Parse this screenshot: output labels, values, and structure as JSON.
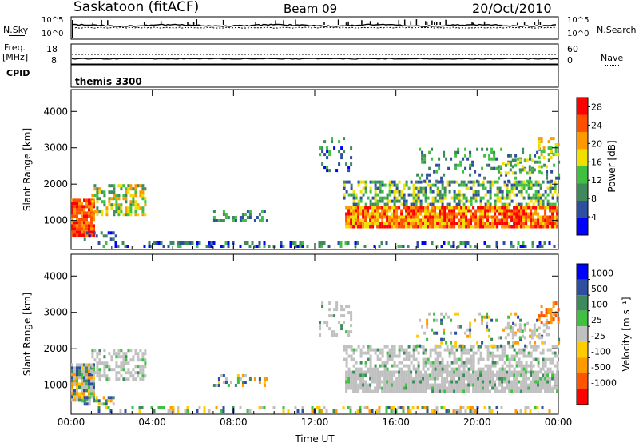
{
  "header": {
    "station": "Saskatoon (fitACF)",
    "beam": "Beam 09",
    "date": "20/Oct/2010"
  },
  "noise_panel": {
    "left_label": "N.Sky",
    "left_ticks": [
      "10^5",
      "10^0"
    ],
    "right_ticks": [
      "10^5",
      "10^0"
    ],
    "right_label": "N.Search"
  },
  "freq_panel": {
    "left_label_1": "Freq.",
    "left_label_2": "[MHz]",
    "left_ticks": [
      "18",
      "8"
    ],
    "right_ticks": [
      "60",
      "0"
    ],
    "right_label": "Nave"
  },
  "cpid": {
    "label": "CPID",
    "value": "themis 3300"
  },
  "colors": {
    "power_scale": [
      "#0000ff",
      "#2e4ea0",
      "#3f8a5c",
      "#40c040",
      "#f0e000",
      "#ff9900",
      "#ff5000",
      "#ff0000"
    ],
    "velocity_scale": [
      "#ff0000",
      "#ff5500",
      "#ff9900",
      "#ffcc00",
      "#c0c0c0",
      "#40c040",
      "#3f8a5c",
      "#2e4ea0",
      "#0000ff"
    ],
    "ground_scatter": "#c0c0c0"
  },
  "chart_data": [
    {
      "type": "heatmap",
      "title": "Power",
      "ylabel": "Slant Range [km]",
      "xlabel": "Time UT",
      "x_ticks": [
        "00:00",
        "04:00",
        "08:00",
        "12:00",
        "16:00",
        "20:00",
        "00:00"
      ],
      "y_ticks": [
        "1000",
        "2000",
        "3000",
        "4000"
      ],
      "ylim": [
        200,
        4600
      ],
      "xlim_hours": [
        0,
        24
      ],
      "colorbar_label": "Power [dB]",
      "colorbar_ticks": [
        "4",
        "8",
        "12",
        "16",
        "20",
        "24",
        "28"
      ],
      "colorbar_range": [
        0,
        30
      ]
    },
    {
      "type": "heatmap",
      "title": "Velocity",
      "ylabel": "Slant Range [km]",
      "xlabel": "Time UT",
      "x_ticks": [
        "00:00",
        "04:00",
        "08:00",
        "12:00",
        "16:00",
        "20:00",
        "00:00"
      ],
      "y_ticks": [
        "1000",
        "2000",
        "3000",
        "4000"
      ],
      "ylim": [
        200,
        4600
      ],
      "xlim_hours": [
        0,
        24
      ],
      "colorbar_label": "Velocity [m s⁻¹]",
      "colorbar_ticks": [
        "1000",
        "500",
        "100",
        "25",
        "-25",
        "-100",
        "-500",
        "-1000"
      ]
    }
  ]
}
